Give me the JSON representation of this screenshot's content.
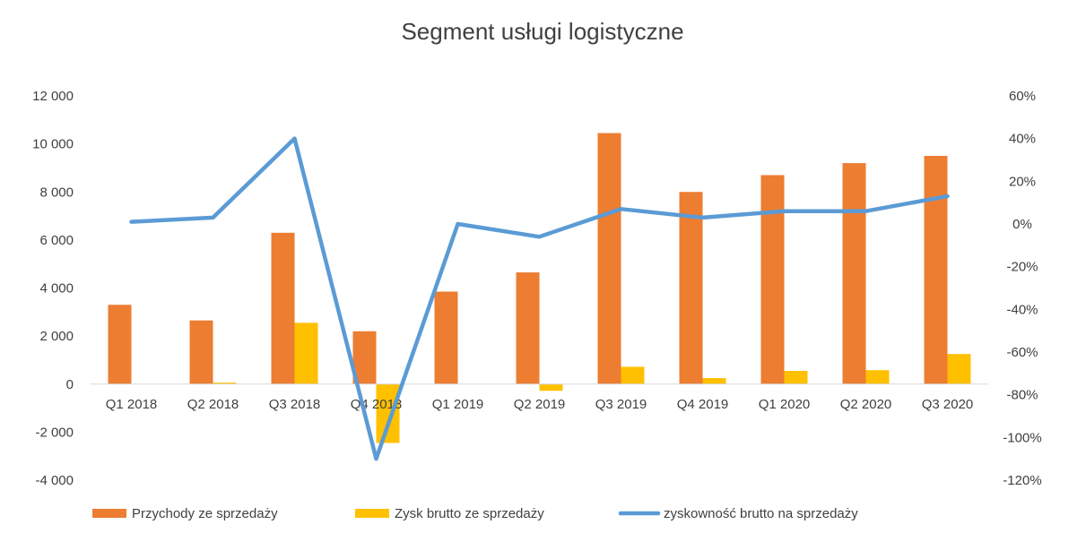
{
  "chart_data": {
    "type": "bar",
    "title": "Segment usługi logistyczne",
    "categories": [
      "Q1 2018",
      "Q2 2018",
      "Q3 2018",
      "Q4 2018",
      "Q1 2019",
      "Q2 2019",
      "Q3 2019",
      "Q4 2019",
      "Q1 2020",
      "Q2 2020",
      "Q3 2020"
    ],
    "series": [
      {
        "name": "Przychody ze sprzedaży",
        "kind": "bar",
        "axis": "left",
        "color": "#ED7D31",
        "values": [
          3300,
          2650,
          6300,
          2200,
          3850,
          4650,
          10450,
          8000,
          8700,
          9200,
          9500
        ]
      },
      {
        "name": "Zysk brutto ze sprzedaży",
        "kind": "bar",
        "axis": "left",
        "color": "#FFC000",
        "values": [
          0,
          60,
          2550,
          -2450,
          0,
          -280,
          720,
          250,
          550,
          580,
          1250
        ]
      },
      {
        "name": "zyskowność brutto na sprzedaży",
        "kind": "line",
        "axis": "right",
        "color": "#5B9BD5",
        "values": [
          0.01,
          0.03,
          0.4,
          -1.1,
          0.0,
          -0.06,
          0.07,
          0.03,
          0.06,
          0.06,
          0.13
        ]
      }
    ],
    "ylim_left": [
      -4000,
      12000
    ],
    "yticks_left": [
      12000,
      10000,
      8000,
      6000,
      4000,
      2000,
      0,
      -2000,
      -4000
    ],
    "ytick_labels_left": [
      "12 000",
      "10 000",
      "8 000",
      "6 000",
      "4 000",
      "2 000",
      "0",
      "-2 000",
      "-4 000"
    ],
    "ylim_right": [
      -1.2,
      0.6
    ],
    "yticks_right": [
      0.6,
      0.4,
      0.2,
      0,
      -0.2,
      -0.4,
      -0.6,
      -0.8,
      -1.0,
      -1.2
    ],
    "ytick_labels_right": [
      "60%",
      "40%",
      "20%",
      "0%",
      "-20%",
      "-40%",
      "-60%",
      "-80%",
      "-100%",
      "-120%"
    ],
    "grid": false,
    "legend_position": "bottom"
  }
}
